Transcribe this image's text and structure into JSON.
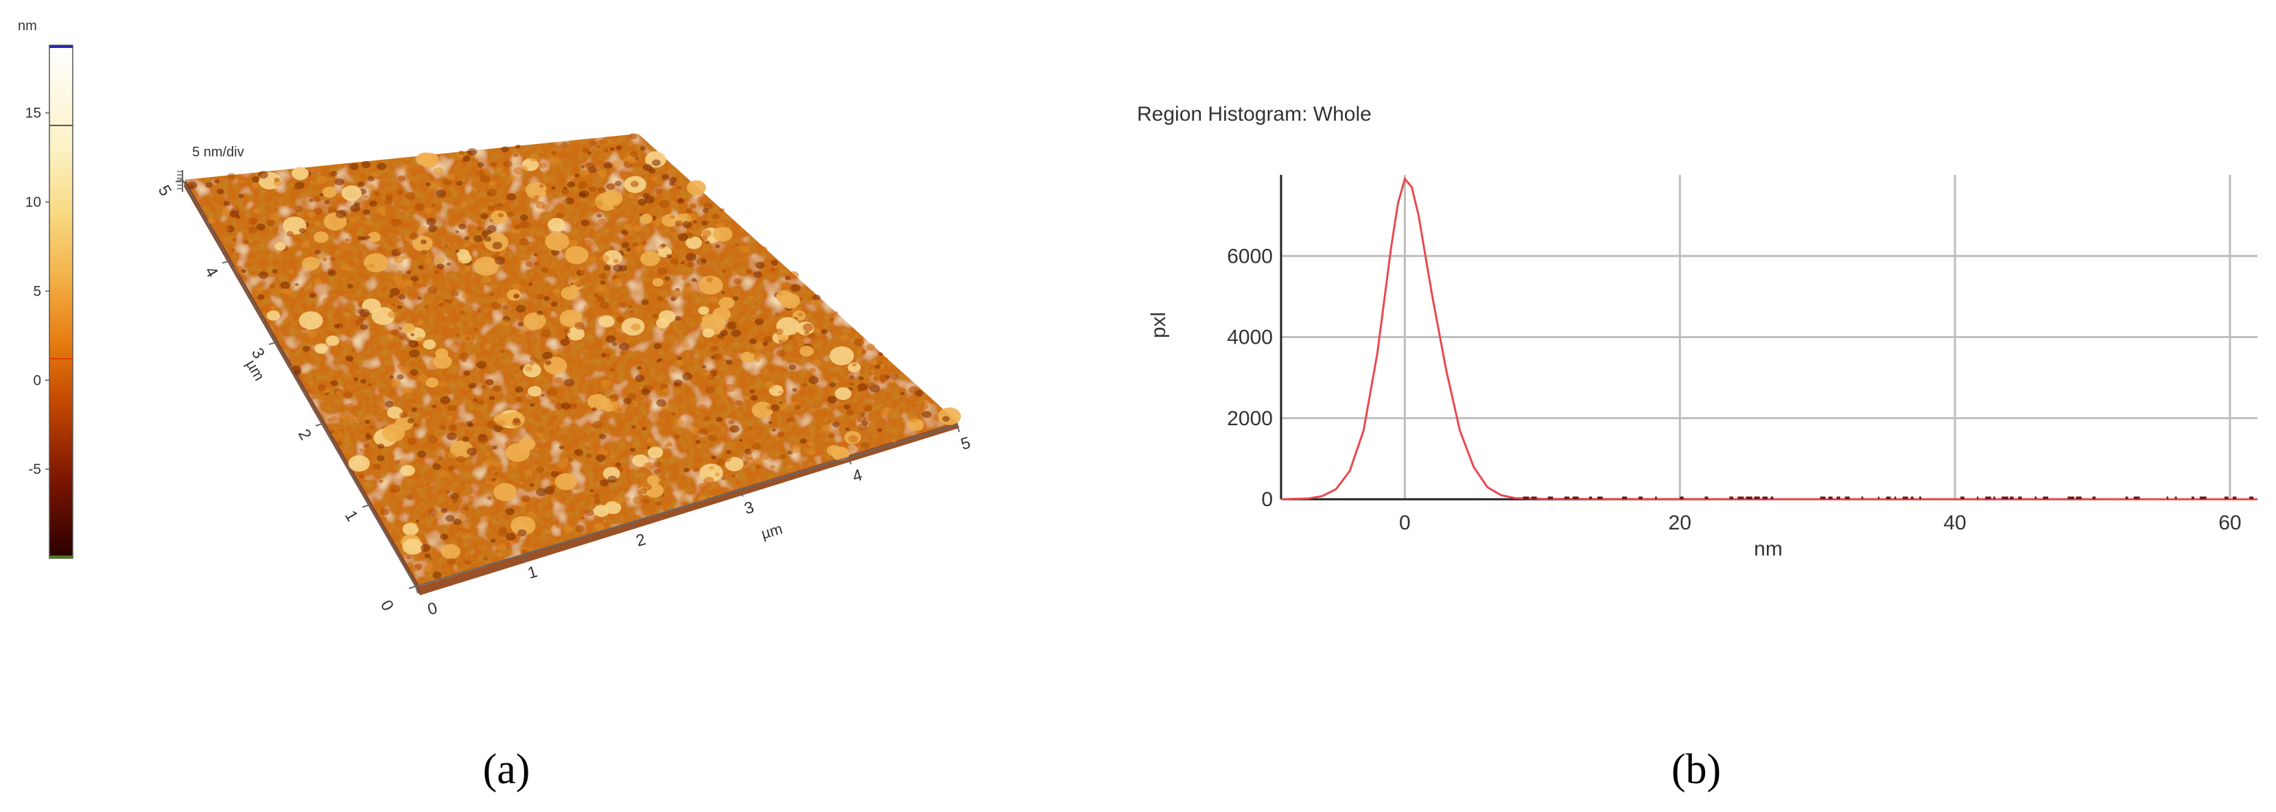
{
  "colorbar": {
    "unit": "nm",
    "ticks": [
      15,
      10,
      5,
      0,
      -5
    ],
    "range": [
      -10,
      18.8
    ],
    "markers": [
      14.3,
      1.2
    ],
    "colors": [
      "#2a0000",
      "#7a1500",
      "#c24600",
      "#e67c10",
      "#f3b24a",
      "#f8dc86",
      "#fcf2c6",
      "#ffffff"
    ]
  },
  "afm_image": {
    "z_scale_label": "5 nm/div",
    "x_axis_label": "µm",
    "y_axis_label": "µm",
    "x_ticks": [
      "0",
      "1",
      "2",
      "3",
      "4",
      "5"
    ],
    "y_ticks": [
      "0",
      "1",
      "2",
      "3",
      "4",
      "5"
    ],
    "surface_colors": [
      "#7a2a00",
      "#b04a00",
      "#d06a10",
      "#e08a25",
      "#f0b050",
      "#f8d58a"
    ]
  },
  "panel_labels": {
    "a": "(a)",
    "b": "(b)"
  },
  "chart_data": {
    "type": "line",
    "title": "Region Histogram: Whole",
    "xlabel": "nm",
    "ylabel": "pxl",
    "xlim": [
      -9,
      62
    ],
    "ylim": [
      0,
      8000
    ],
    "x_ticks": [
      0,
      20,
      40,
      60
    ],
    "y_ticks": [
      0,
      2000,
      4000,
      6000
    ],
    "grid": true,
    "line_color": "#e8484f",
    "series": [
      {
        "x": [
          -9,
          -7,
          -6,
          -5,
          -4,
          -3,
          -2,
          -1.5,
          -1,
          -0.5,
          0,
          0.5,
          1,
          1.5,
          2,
          3,
          4,
          5,
          6,
          7,
          8,
          10,
          15,
          20,
          30,
          40,
          50,
          62
        ],
        "values": [
          0,
          20,
          80,
          250,
          700,
          1700,
          3600,
          4900,
          6200,
          7300,
          7900,
          7700,
          7000,
          6000,
          5000,
          3200,
          1700,
          800,
          300,
          100,
          30,
          10,
          5,
          3,
          2,
          1,
          1,
          0
        ]
      }
    ]
  }
}
